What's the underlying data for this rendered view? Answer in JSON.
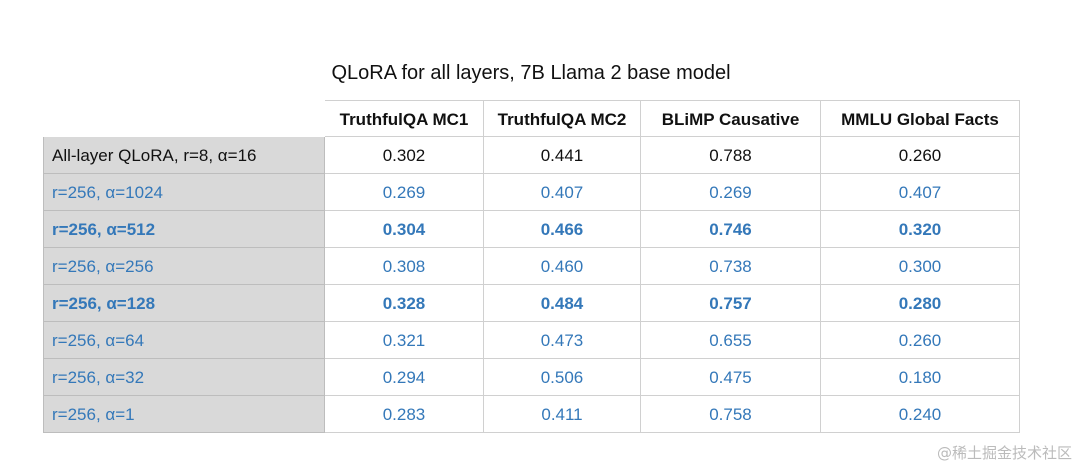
{
  "title": "QLoRA for all layers, 7B Llama 2 base model",
  "table": {
    "columns": [
      "TruthfulQA MC1",
      "TruthfulQA MC2",
      "BLiMP Causative",
      "MMLU Global Facts"
    ],
    "rows": [
      [
        "All-layer QLoRA, r=8, α=16",
        "0.302",
        "0.441",
        "0.788",
        "0.260"
      ],
      [
        "r=256, α=1024",
        "0.269",
        "0.407",
        "0.269",
        "0.407"
      ],
      [
        "r=256, α=512",
        "0.304",
        "0.466",
        "0.746",
        "0.320"
      ],
      [
        "r=256, α=256",
        "0.308",
        "0.460",
        "0.738",
        "0.300"
      ],
      [
        "r=256, α=128",
        "0.328",
        "0.484",
        "0.757",
        "0.280"
      ],
      [
        "r=256, α=64",
        "0.321",
        "0.473",
        "0.655",
        "0.260"
      ],
      [
        "r=256, α=32",
        "0.294",
        "0.506",
        "0.475",
        "0.180"
      ],
      [
        "r=256, α=1",
        "0.283",
        "0.411",
        "0.758",
        "0.240"
      ]
    ]
  },
  "watermark": "@稀土掘金技术社区"
}
